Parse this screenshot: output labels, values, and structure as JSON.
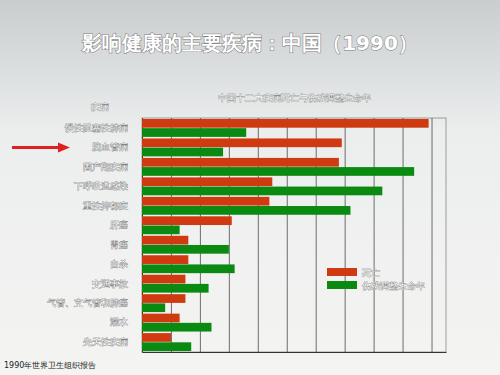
{
  "chart_data": {
    "type": "bar",
    "orientation": "horizontal",
    "title": "影响健康的主要疾病：中国（1990）",
    "subtitle": "中国十二大疾病死亡与伤残调整生命年",
    "y_label": "疾病",
    "annotation": "1990年世界卫生组织报告",
    "categories": [
      "慢性阻塞性肺病",
      "脑血管病",
      "围产期疾病",
      "下呼吸道感染",
      "重性抑郁症",
      "肝癌",
      "胃癌",
      "自杀",
      "交通事故",
      "气管、支气管和肺癌",
      "溺水",
      "先天性疾病"
    ],
    "series": [
      {
        "name": "死亡",
        "color": "#d03a10",
        "values": [
          9.9,
          6.9,
          6.8,
          4.5,
          4.4,
          3.1,
          1.6,
          1.6,
          1.5,
          1.5,
          1.3,
          1.0
        ]
      },
      {
        "name": "伤残调整生命年",
        "color": "#0a8a10",
        "values": [
          3.6,
          2.8,
          9.4,
          8.3,
          7.2,
          1.3,
          3.0,
          3.2,
          2.3,
          0.8,
          2.4,
          1.7
        ]
      }
    ],
    "xlim": [
      0,
      10.5
    ],
    "xticks": [
      0,
      1,
      2,
      3,
      4,
      5,
      6,
      7,
      8,
      9,
      10
    ],
    "grid": true,
    "tick_labels": "y",
    "legend": "bottom-right"
  }
}
